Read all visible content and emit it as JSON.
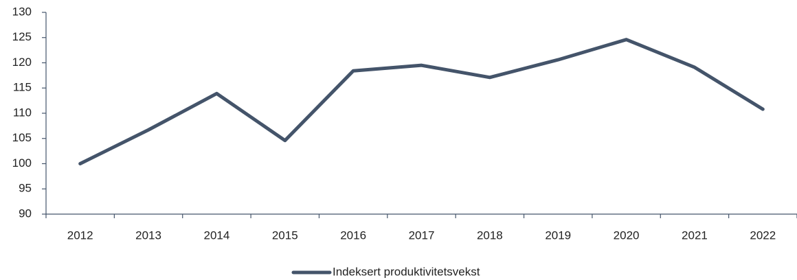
{
  "chart_data": {
    "type": "line",
    "categories": [
      "2012",
      "2013",
      "2014",
      "2015",
      "2016",
      "2017",
      "2018",
      "2019",
      "2020",
      "2021",
      "2022"
    ],
    "series": [
      {
        "name": "Indeksert produktivitetsvekst",
        "color": "#44546a",
        "values": [
          100,
          106.7,
          113.9,
          104.6,
          118.4,
          119.5,
          117.1,
          120.6,
          124.6,
          119.1,
          110.8
        ]
      }
    ],
    "ylim": [
      90,
      130
    ],
    "yticks": [
      90,
      95,
      100,
      105,
      110,
      115,
      120,
      125,
      130
    ],
    "grid": false,
    "legend": "bottom"
  }
}
